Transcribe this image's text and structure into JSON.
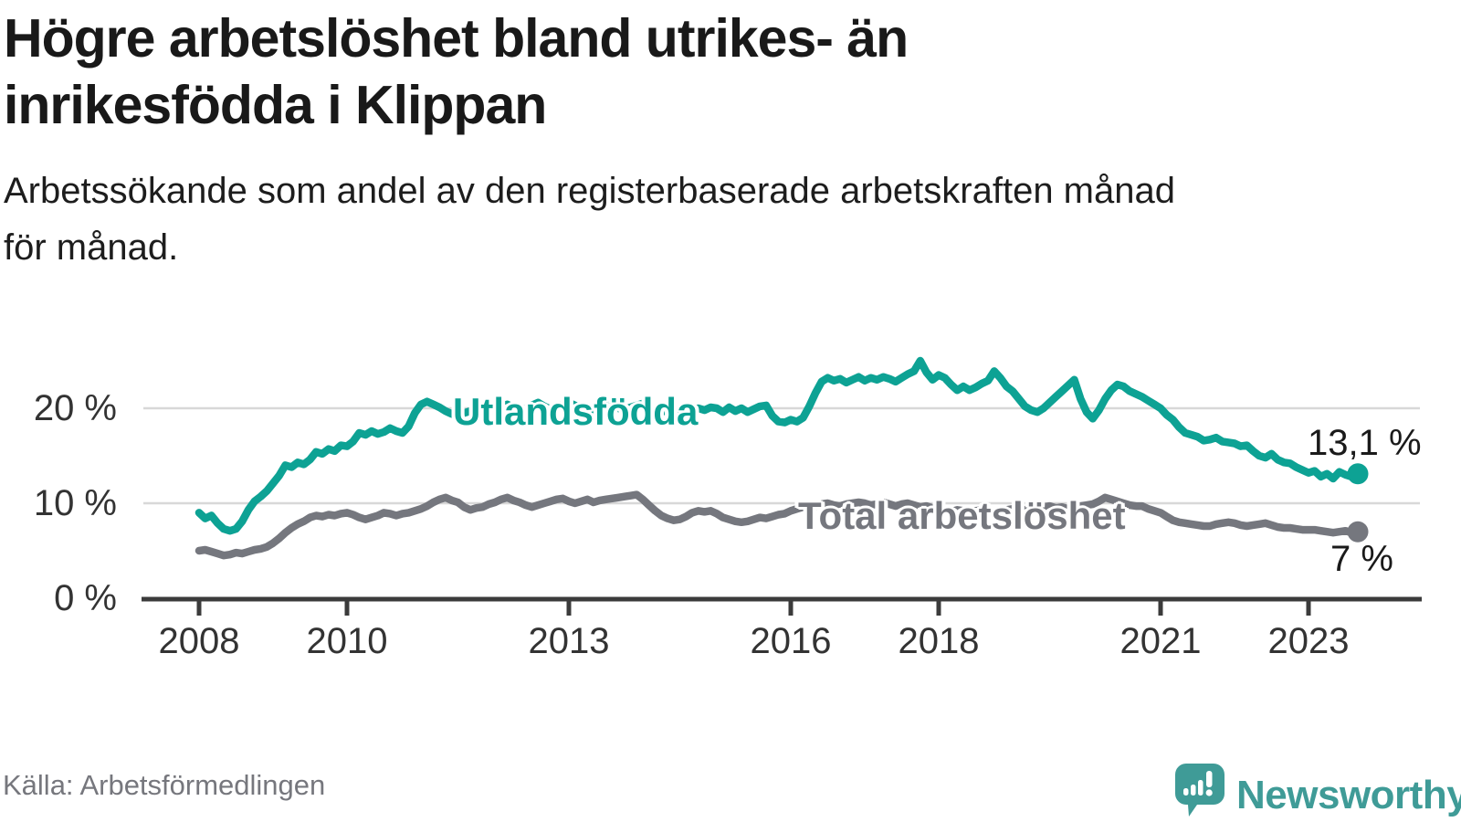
{
  "header": {
    "title_line1": "Högre arbetslöshet bland utrikes- än",
    "title_line2": "inrikesfödda i Klippan",
    "subtitle_line1": "Arbetssökande som andel av den registerbaserade arbetskraften månad",
    "subtitle_line2": "för månad."
  },
  "footer": {
    "source": "Källa: Arbetsförmedlingen",
    "brand": "Newsworthy"
  },
  "colors": {
    "accent_teal": "#0DA294",
    "line_gray": "#75777E",
    "grid": "#D8D8D8",
    "axis": "#3B3B3B",
    "text_dark": "#191919",
    "tick_text": "#333333",
    "source_text": "#76777D",
    "logo_teal": "#3F9B97"
  },
  "chart_data": {
    "type": "line",
    "title": "Högre arbetslöshet bland utrikes- än inrikesfödda i Klippan",
    "subtitle": "Arbetssökande som andel av den registerbaserade arbetskraften månad för månad.",
    "xlabel": "",
    "ylabel": "",
    "ylim": [
      0,
      27
    ],
    "xlim": [
      2007.25,
      2024.5
    ],
    "grid": "horizontal",
    "y_ticks": [
      {
        "label": "20 %",
        "value": 20
      },
      {
        "label": "10 %",
        "value": 10
      },
      {
        "label": "0 %",
        "value": 0
      }
    ],
    "x_ticks": [
      {
        "label": "2008",
        "year": 2008
      },
      {
        "label": "2010",
        "year": 2010
      },
      {
        "label": "2013",
        "year": 2013
      },
      {
        "label": "2016",
        "year": 2016
      },
      {
        "label": "2018",
        "year": 2018
      },
      {
        "label": "2021",
        "year": 2021
      },
      {
        "label": "2023",
        "year": 2023
      }
    ],
    "series": [
      {
        "name": "Utlandsfödda",
        "color": "#0DA294",
        "start_year": 2008,
        "start_month": 1,
        "frequency": "monthly",
        "end_label": "13,1 %",
        "end_value": 13.1,
        "values": [
          9.0,
          8.4,
          8.7,
          7.9,
          7.3,
          7.1,
          7.3,
          8.1,
          9.3,
          10.2,
          10.7,
          11.3,
          12.1,
          12.9,
          14.0,
          13.8,
          14.3,
          14.1,
          14.6,
          15.4,
          15.2,
          15.7,
          15.5,
          16.1,
          16.0,
          16.5,
          17.4,
          17.2,
          17.6,
          17.3,
          17.5,
          17.9,
          17.6,
          17.4,
          18.1,
          19.5,
          20.4,
          20.7,
          20.4,
          20.1,
          19.7,
          19.4,
          19.2,
          19.5,
          19.7,
          19.9,
          19.7,
          19.5,
          19.8,
          20.2,
          20.4,
          20.1,
          19.8,
          20.0,
          20.3,
          20.6,
          20.2,
          19.9,
          20.1,
          20.4,
          20.6,
          20.3,
          20.0,
          19.7,
          19.9,
          20.2,
          20.5,
          20.3,
          20.0,
          19.8,
          20.1,
          20.3,
          20.5,
          20.2,
          19.9,
          19.6,
          19.8,
          20.0,
          19.7,
          19.5,
          19.8,
          20.0,
          19.8,
          20.1,
          20.0,
          19.6,
          20.1,
          19.7,
          20.0,
          19.6,
          19.9,
          20.2,
          20.3,
          19.2,
          18.6,
          18.5,
          18.8,
          18.6,
          19.0,
          20.2,
          21.6,
          22.8,
          23.2,
          22.9,
          23.1,
          22.7,
          23.0,
          23.3,
          22.9,
          23.2,
          23.0,
          23.3,
          23.1,
          22.8,
          23.2,
          23.6,
          23.9,
          25.0,
          23.8,
          23.0,
          23.5,
          23.2,
          22.5,
          21.9,
          22.3,
          21.9,
          22.2,
          22.6,
          22.9,
          23.9,
          23.2,
          22.3,
          21.8,
          21.0,
          20.2,
          19.8,
          19.6,
          20.0,
          20.6,
          21.2,
          21.8,
          22.4,
          23.0,
          21.0,
          19.6,
          18.9,
          19.8,
          21.0,
          21.9,
          22.5,
          22.3,
          21.8,
          21.5,
          21.2,
          20.8,
          20.4,
          20.0,
          19.3,
          18.8,
          18.0,
          17.4,
          17.2,
          17.0,
          16.6,
          16.7,
          16.9,
          16.5,
          16.4,
          16.3,
          16.0,
          16.1,
          15.5,
          15.0,
          14.8,
          15.2,
          14.6,
          14.3,
          14.2,
          13.8,
          13.5,
          13.2,
          13.4,
          12.8,
          13.1,
          12.6,
          13.3,
          13.0,
          12.8,
          13.1
        ]
      },
      {
        "name": "Total arbetslöshet",
        "color": "#75777E",
        "start_year": 2008,
        "start_month": 1,
        "frequency": "monthly",
        "end_label": "7 %",
        "end_value": 7.0,
        "values": [
          5.0,
          5.1,
          4.9,
          4.7,
          4.5,
          4.6,
          4.8,
          4.7,
          4.9,
          5.1,
          5.2,
          5.4,
          5.8,
          6.3,
          6.9,
          7.4,
          7.8,
          8.1,
          8.5,
          8.7,
          8.6,
          8.8,
          8.7,
          8.9,
          9.0,
          8.8,
          8.5,
          8.3,
          8.5,
          8.7,
          9.0,
          8.9,
          8.7,
          8.9,
          9.0,
          9.2,
          9.4,
          9.7,
          10.1,
          10.4,
          10.6,
          10.3,
          10.1,
          9.6,
          9.3,
          9.5,
          9.6,
          9.9,
          10.1,
          10.4,
          10.6,
          10.3,
          10.1,
          9.8,
          9.6,
          9.8,
          10.0,
          10.2,
          10.4,
          10.5,
          10.2,
          10.0,
          10.2,
          10.4,
          10.1,
          10.3,
          10.4,
          10.5,
          10.6,
          10.7,
          10.8,
          10.9,
          10.4,
          9.8,
          9.2,
          8.7,
          8.4,
          8.2,
          8.3,
          8.6,
          9.0,
          9.2,
          9.1,
          9.2,
          8.9,
          8.5,
          8.3,
          8.1,
          8.0,
          8.1,
          8.3,
          8.5,
          8.4,
          8.6,
          8.8,
          8.9,
          9.2,
          9.4,
          9.6,
          9.5,
          9.7,
          9.9,
          10.0,
          9.8,
          9.7,
          9.9,
          10.0,
          10.1,
          10.0,
          9.8,
          9.9,
          10.1,
          9.9,
          9.7,
          9.9,
          10.0,
          9.8,
          9.6,
          9.7,
          9.5,
          9.4,
          9.2,
          9.1,
          9.3,
          9.2,
          9.0,
          9.2,
          9.3,
          9.1,
          9.0,
          9.2,
          9.3,
          9.4,
          9.2,
          9.3,
          9.5,
          9.4,
          9.6,
          9.7,
          9.5,
          9.6,
          9.4,
          9.5,
          9.7,
          9.8,
          9.9,
          10.2,
          10.6,
          10.4,
          10.2,
          10.0,
          9.8,
          9.7,
          9.7,
          9.4,
          9.2,
          9.0,
          8.6,
          8.2,
          8.0,
          7.9,
          7.8,
          7.7,
          7.6,
          7.6,
          7.8,
          7.9,
          8.0,
          7.9,
          7.7,
          7.6,
          7.7,
          7.8,
          7.9,
          7.7,
          7.5,
          7.4,
          7.4,
          7.3,
          7.2,
          7.2,
          7.2,
          7.1,
          7.0,
          6.9,
          7.0,
          7.1,
          6.9,
          7.0
        ]
      }
    ]
  }
}
